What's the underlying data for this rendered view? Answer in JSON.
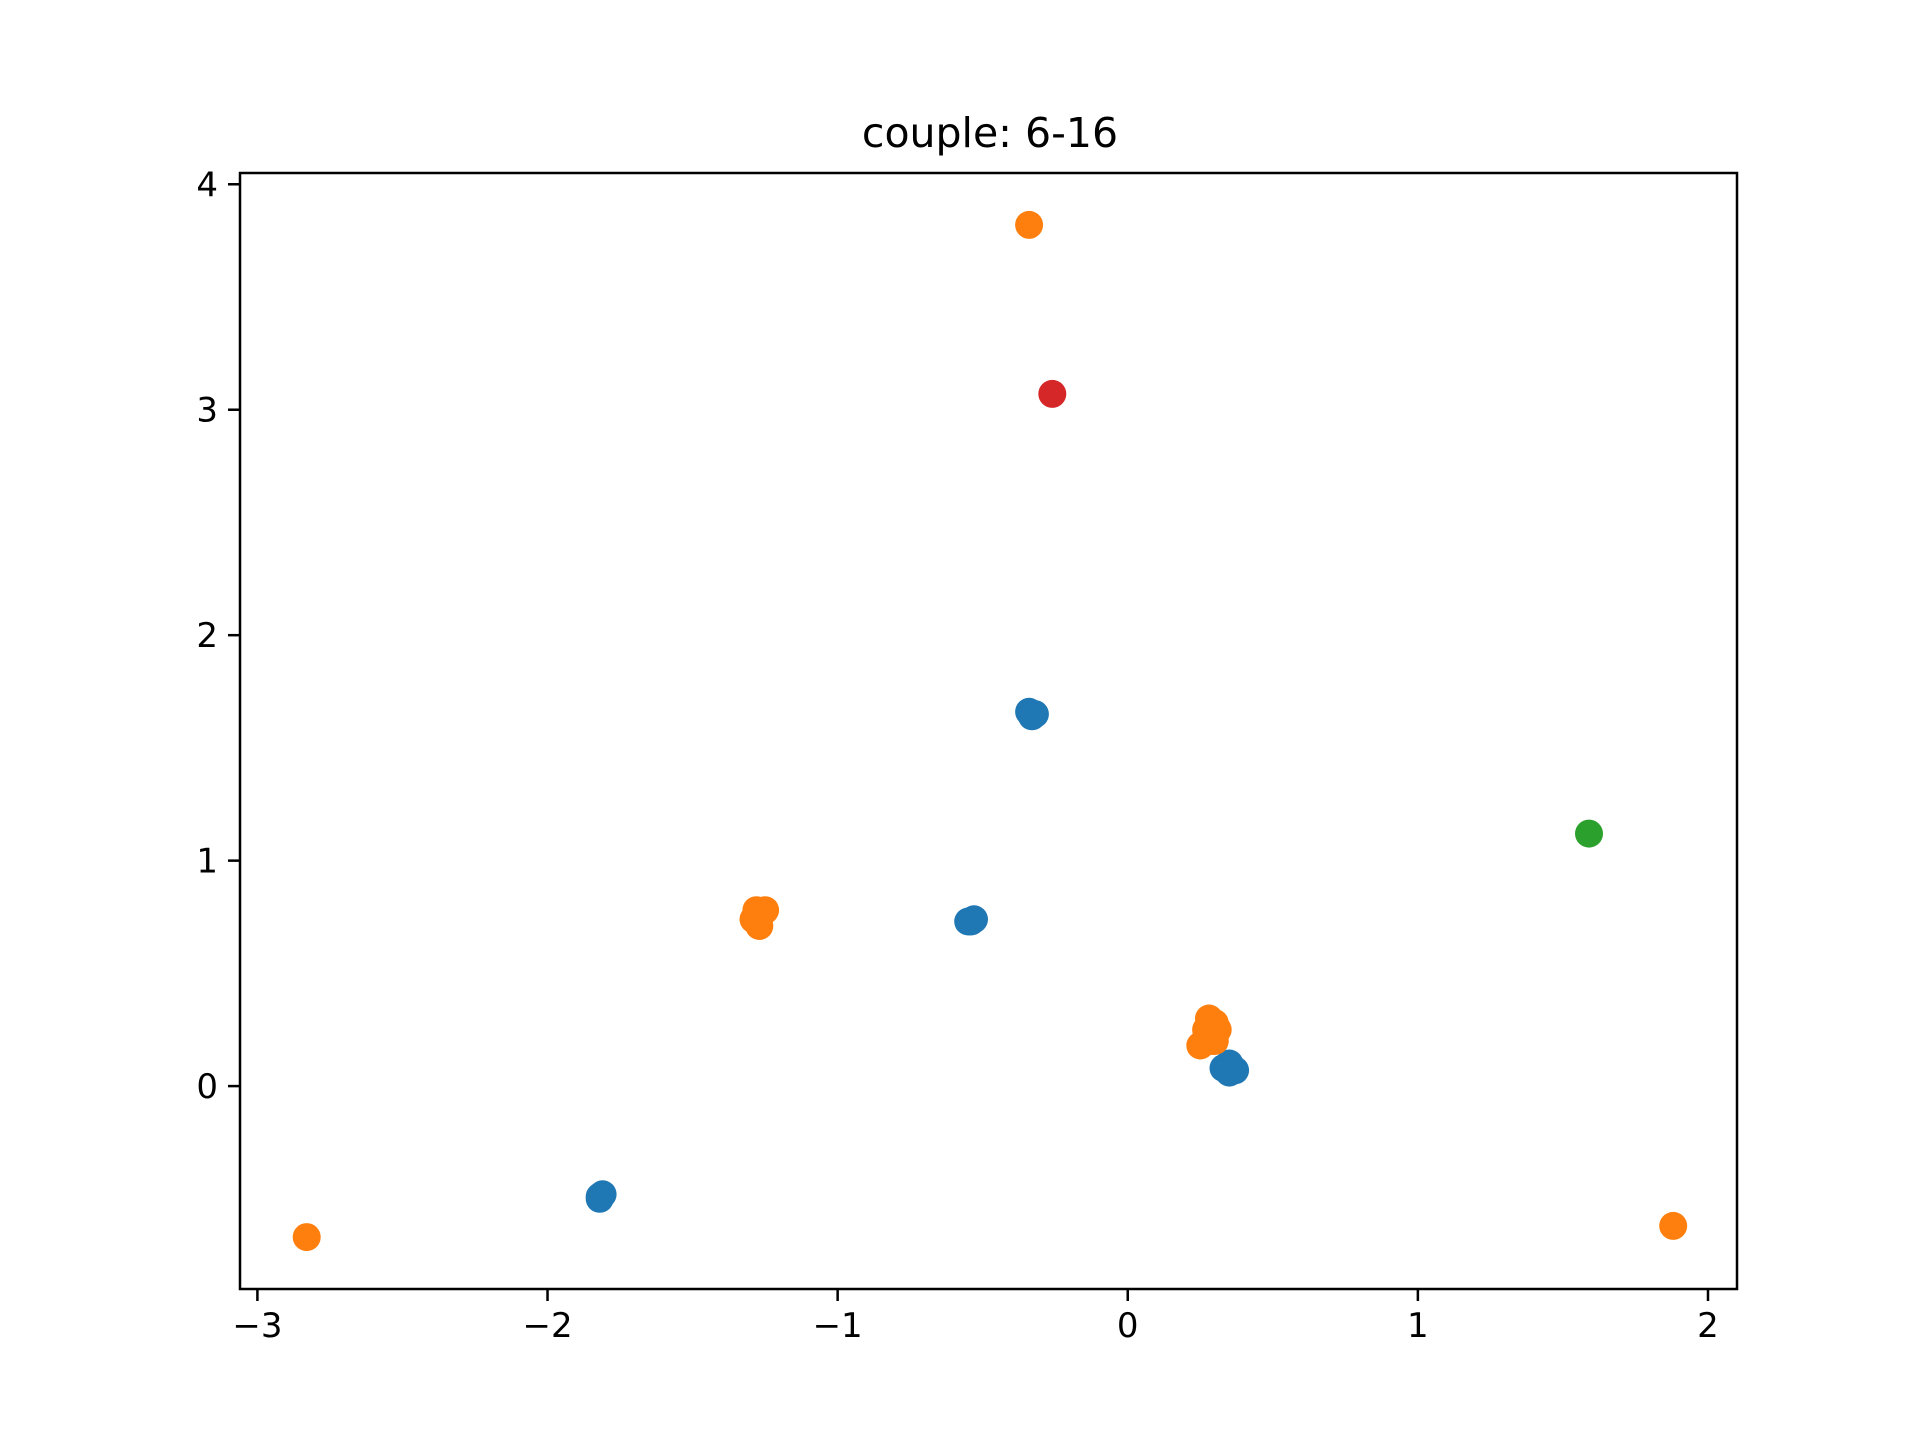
{
  "chart_data": {
    "type": "scatter",
    "title": "couple: 6-16",
    "xlabel": "",
    "ylabel": "",
    "xlim": [
      -3.06,
      2.1
    ],
    "ylim": [
      -0.9,
      4.05
    ],
    "xticks": [
      -3,
      -2,
      -1,
      0,
      1,
      2
    ],
    "xtick_labels": [
      "−3",
      "−2",
      "−1",
      "0",
      "1",
      "2"
    ],
    "yticks": [
      0,
      1,
      2,
      3,
      4
    ],
    "ytick_labels": [
      "0",
      "1",
      "2",
      "3",
      "4"
    ],
    "grid": false,
    "legend": "none",
    "series": [
      {
        "color": "#1f77b4",
        "points": [
          [
            -0.34,
            1.66
          ],
          [
            -0.32,
            1.65
          ],
          [
            -0.33,
            1.64
          ],
          [
            -0.55,
            0.73
          ],
          [
            -0.53,
            0.74
          ],
          [
            -0.54,
            0.73
          ],
          [
            -1.82,
            -0.5
          ],
          [
            -1.81,
            -0.48
          ],
          [
            -1.82,
            -0.49
          ],
          [
            0.33,
            0.08
          ],
          [
            0.35,
            0.1
          ],
          [
            0.37,
            0.07
          ],
          [
            0.35,
            0.06
          ]
        ]
      },
      {
        "color": "#ff7f0e",
        "points": [
          [
            -0.34,
            3.82
          ],
          [
            -1.28,
            0.78
          ],
          [
            -1.25,
            0.78
          ],
          [
            -1.29,
            0.74
          ],
          [
            -1.27,
            0.71
          ],
          [
            -2.83,
            -0.67
          ],
          [
            1.88,
            -0.62
          ],
          [
            0.28,
            0.3
          ],
          [
            0.3,
            0.28
          ],
          [
            0.27,
            0.25
          ],
          [
            0.31,
            0.25
          ],
          [
            0.25,
            0.18
          ],
          [
            0.29,
            0.2
          ],
          [
            0.3,
            0.2
          ]
        ]
      },
      {
        "color": "#2ca02c",
        "points": [
          [
            1.59,
            1.12
          ]
        ]
      },
      {
        "color": "#d62728",
        "points": [
          [
            -0.26,
            3.07
          ]
        ]
      }
    ]
  }
}
